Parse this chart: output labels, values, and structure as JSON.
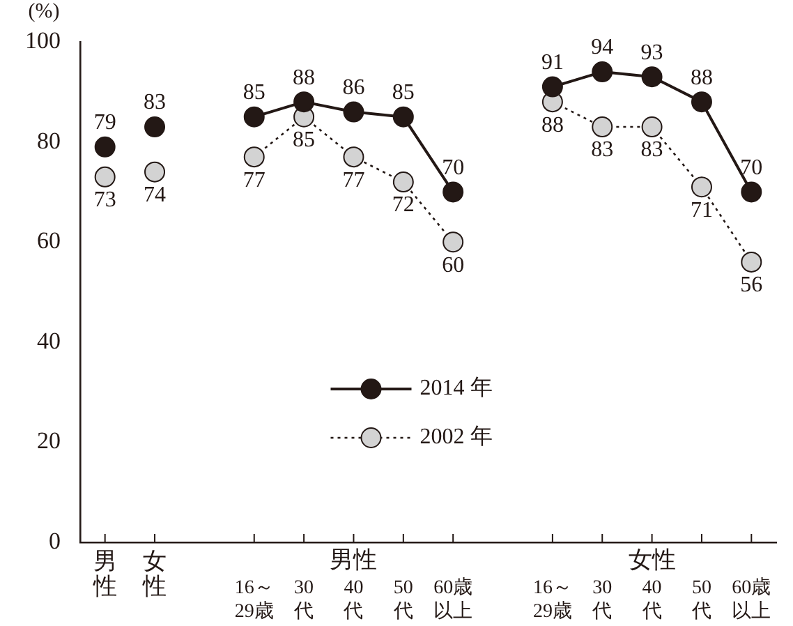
{
  "chart_data": {
    "type": "line",
    "ylabel": "(%)",
    "categories": [
      "男性",
      "女性",
      null,
      "16～29歳",
      "30代",
      "40代",
      "50代",
      "60歳以上",
      null,
      "16～29歳",
      "30代",
      "40代",
      "50代",
      "60歳以上"
    ],
    "series": [
      {
        "type": "scatter",
        "color": "#231815",
        "values": [
          79,
          83,
          null,
          null,
          null,
          null,
          null,
          null,
          null,
          null,
          null,
          null,
          null,
          null
        ]
      },
      {
        "type": "scatter",
        "color": "#d3d3d3",
        "values": [
          73,
          74,
          null,
          null,
          null,
          null,
          null,
          null,
          null,
          null,
          null,
          null,
          null,
          null
        ]
      },
      {
        "name": "2014 年",
        "color": "#231815",
        "line_style": "solid",
        "values": [
          null,
          null,
          null,
          85,
          88,
          86,
          85,
          70,
          null,
          91,
          94,
          93,
          88,
          70
        ]
      },
      {
        "name": "2002 年",
        "color": "#d3d3d3",
        "line_style": "dotted",
        "values": [
          null,
          null,
          null,
          77,
          85,
          77,
          72,
          60,
          null,
          88,
          83,
          83,
          71,
          56
        ]
      }
    ],
    "annotations": [
      "男性",
      "女性"
    ],
    "ylim": [
      0,
      100
    ],
    "yticks": [
      0,
      20,
      40,
      60,
      80,
      100
    ],
    "grid": false,
    "legend": "bottom",
    "marker": "circle",
    "data_labels": true
  }
}
